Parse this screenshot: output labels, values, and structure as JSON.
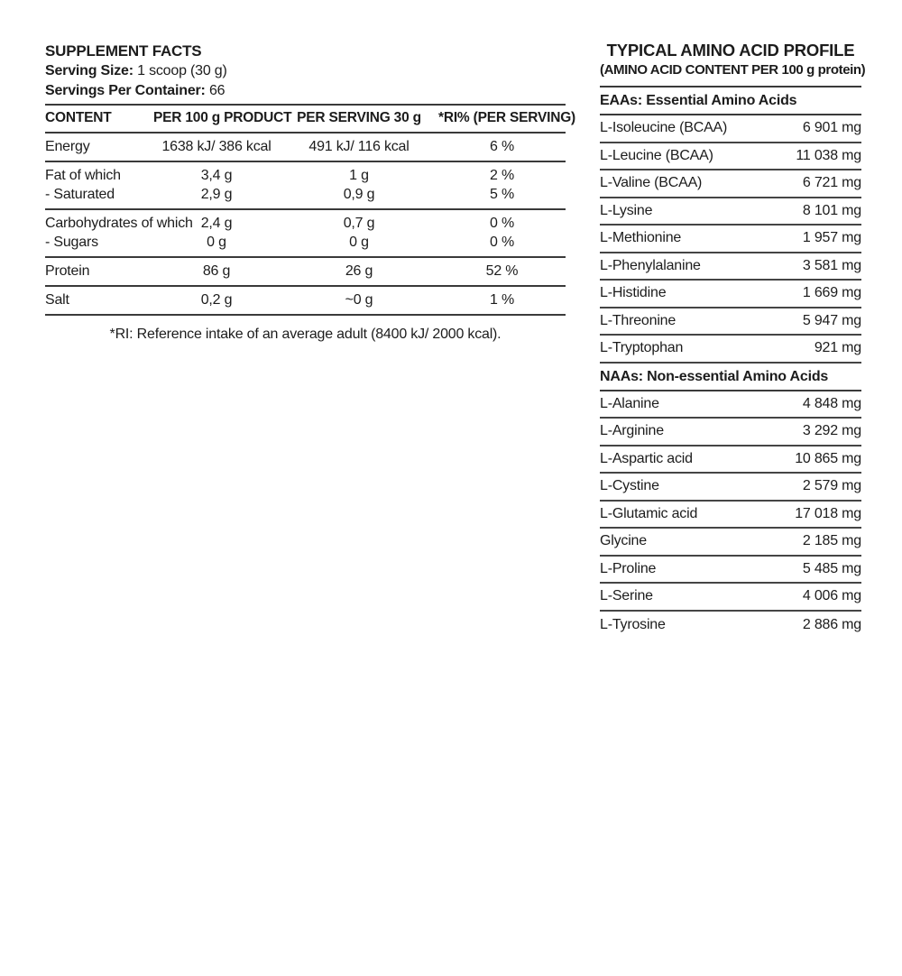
{
  "supplement_facts": {
    "title": "SUPPLEMENT FACTS",
    "serving_size_label": "Serving Size:",
    "serving_size_value": "1 scoop (30 g)",
    "servings_per_container_label": "Servings Per Container:",
    "servings_per_container_value": "66",
    "columns": [
      "CONTENT",
      "PER 100 g PRODUCT",
      "PER SERVING 30 g",
      "*RI% (PER SERVING)"
    ],
    "sections": [
      {
        "lines": [
          {
            "label": "Energy",
            "per_100g": "1638 kJ/ 386 kcal",
            "per_serving": "491 kJ/ 116 kcal",
            "ri": "6 %"
          }
        ]
      },
      {
        "lines": [
          {
            "label": "Fat of which",
            "per_100g": "3,4 g",
            "per_serving": "1 g",
            "ri": "2 %"
          },
          {
            "label": "- Saturated",
            "per_100g": "2,9 g",
            "per_serving": "0,9 g",
            "ri": "5 %"
          }
        ]
      },
      {
        "lines": [
          {
            "label": "Carbohydrates of which",
            "per_100g": "2,4 g",
            "per_serving": "0,7 g",
            "ri": "0 %"
          },
          {
            "label": "- Sugars",
            "per_100g": "0 g",
            "per_serving": "0 g",
            "ri": "0 %"
          }
        ]
      },
      {
        "lines": [
          {
            "label": "Protein",
            "per_100g": "86 g",
            "per_serving": "26 g",
            "ri": "52 %"
          }
        ]
      },
      {
        "lines": [
          {
            "label": "Salt",
            "per_100g": "0,2 g",
            "per_serving": "~0 g",
            "ri": "1 %"
          }
        ]
      }
    ],
    "footnote": "*RI: Reference intake of an average adult (8400 kJ/ 2000 kcal)."
  },
  "amino_profile": {
    "title": "TYPICAL AMINO ACID PROFILE",
    "subtitle": "(AMINO ACID CONTENT PER 100 g protein)",
    "eaa_header": "EAAs: Essential Amino Acids",
    "eaa_rows": [
      {
        "name": "L-Isoleucine (BCAA)",
        "amount": "6 901 mg"
      },
      {
        "name": "L-Leucine (BCAA)",
        "amount": "11 038 mg"
      },
      {
        "name": "L-Valine (BCAA)",
        "amount": "6 721 mg"
      },
      {
        "name": "L-Lysine",
        "amount": "8 101 mg"
      },
      {
        "name": "L-Methionine",
        "amount": "1 957 mg"
      },
      {
        "name": "L-Phenylalanine",
        "amount": "3 581 mg"
      },
      {
        "name": "L-Histidine",
        "amount": "1 669 mg"
      },
      {
        "name": "L-Threonine",
        "amount": "5 947 mg"
      },
      {
        "name": "L-Tryptophan",
        "amount": "921 mg"
      }
    ],
    "naa_header": "NAAs: Non-essential Amino Acids",
    "naa_rows": [
      {
        "name": "L-Alanine",
        "amount": "4 848 mg"
      },
      {
        "name": "L-Arginine",
        "amount": "3 292 mg"
      },
      {
        "name": "L-Aspartic acid",
        "amount": "10 865 mg"
      },
      {
        "name": "L-Cystine",
        "amount": "2 579 mg"
      },
      {
        "name": "L-Glutamic acid",
        "amount": "17 018 mg"
      },
      {
        "name": "Glycine",
        "amount": "2 185 mg"
      },
      {
        "name": "L-Proline",
        "amount": "5 485 mg"
      },
      {
        "name": "L-Serine",
        "amount": "4 006 mg"
      },
      {
        "name": "L-Tyrosine",
        "amount": "2 886 mg"
      }
    ]
  }
}
